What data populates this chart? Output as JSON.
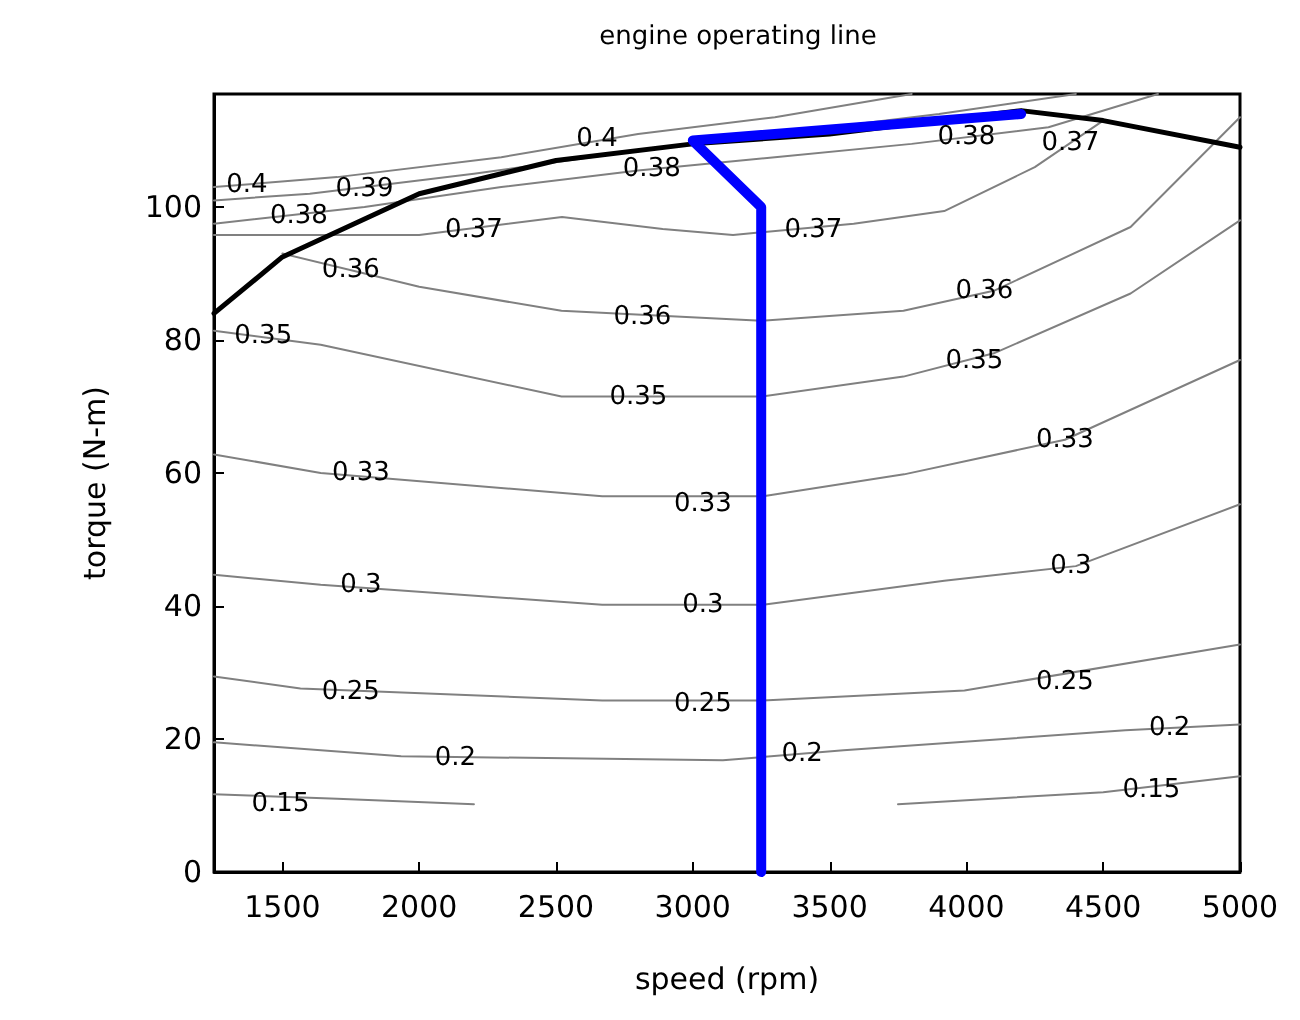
{
  "chart_data": {
    "type": "line",
    "title": "engine operating line",
    "xlabel": "speed (rpm)",
    "ylabel": "torque (N-m)",
    "xlim": [
      1250,
      5000
    ],
    "ylim": [
      0,
      117
    ],
    "xticks": [
      1500,
      2000,
      2500,
      3000,
      3500,
      4000,
      4500,
      5000
    ],
    "yticks": [
      0,
      20,
      40,
      60,
      80,
      100
    ],
    "grid": false,
    "marker": "none",
    "line_style": "solid",
    "series": [
      {
        "color": "#808080",
        "x": [
          1250,
          1700,
          2200,
          3000,
          3750,
          4500,
          5000
        ],
        "values": [
          11.7,
          11,
          10.2,
          null,
          10.2,
          12,
          14.4
        ]
      },
      {
        "color": "#808080",
        "x": [
          1250,
          1934,
          3110,
          3551,
          4581,
          5000
        ],
        "values": [
          19.5,
          17.4,
          16.8,
          18.3,
          21.3,
          22.2
        ]
      },
      {
        "color": "#808080",
        "x": [
          1250,
          1566,
          2669,
          3257,
          3993,
          5000
        ],
        "values": [
          29.4,
          27.6,
          25.8,
          25.8,
          27.3,
          34.2
        ]
      },
      {
        "color": "#808080",
        "x": [
          1250,
          1640,
          2669,
          3257,
          3919,
          4400,
          5000
        ],
        "values": [
          44.7,
          43.2,
          40.2,
          40.2,
          43.8,
          46,
          55.3
        ]
      },
      {
        "color": "#808080",
        "x": [
          1250,
          1640,
          2669,
          3257,
          3772,
          4360,
          5000
        ],
        "values": [
          62.8,
          60,
          56.5,
          56.5,
          59.8,
          65,
          77
        ]
      },
      {
        "color": "#808080",
        "x": [
          1250,
          1640,
          2520,
          3250,
          3770,
          4100,
          4600,
          5000
        ],
        "values": [
          81.4,
          79.3,
          71.5,
          71.5,
          74.5,
          78,
          87,
          98
        ]
      },
      {
        "color": "#808080",
        "x": [
          1500,
          2000,
          2520,
          3250,
          3770,
          4100,
          4600,
          5000
        ],
        "values": [
          93,
          88,
          84.4,
          82.9,
          84.4,
          87.4,
          97,
          113.5
        ]
      },
      {
        "color": "#808080",
        "x": [
          1250,
          2000,
          2522,
          2890,
          3147,
          3588,
          3919,
          4250,
          4500
        ],
        "values": [
          95.8,
          95.8,
          98.5,
          96.7,
          95.8,
          97.5,
          99.4,
          106,
          113
        ]
      },
      {
        "color": "#808080",
        "x": [
          1250,
          1800,
          2300,
          2800,
          3300,
          3800,
          4300,
          4700
        ],
        "values": [
          97.5,
          100,
          103,
          105.5,
          107.5,
          109.5,
          112,
          117
        ]
      },
      {
        "color": "#808080",
        "x": [
          1250,
          1600,
          2200,
          2800,
          3300,
          3900,
          4400
        ],
        "values": [
          101,
          102,
          105,
          108.5,
          111,
          114,
          117
        ]
      },
      {
        "color": "#808080",
        "x": [
          1250,
          1700,
          2300,
          2800,
          3300,
          3800
        ],
        "values": [
          103,
          104.5,
          107.5,
          111,
          113.5,
          117
        ]
      },
      {
        "color": "#000000",
        "x": [
          1250,
          1500,
          2000,
          2500,
          3000,
          3500,
          4200,
          4500,
          5000
        ],
        "values": [
          84,
          92.5,
          102,
          107,
          109.5,
          111,
          114.5,
          113,
          109
        ]
      },
      {
        "color": "#0000ff",
        "x": [
          3250,
          3250,
          3000,
          4200
        ],
        "values": [
          0,
          100,
          110,
          114
        ]
      }
    ],
    "annotations": [
      {
        "text": "0.15",
        "x": 1493,
        "y": 10.2
      },
      {
        "text": "0.15",
        "x": 4676,
        "y": 12.3
      },
      {
        "text": "0.2",
        "x": 2132,
        "y": 17.2
      },
      {
        "text": "0.2",
        "x": 3400,
        "y": 17.8
      },
      {
        "text": "0.2",
        "x": 4743,
        "y": 21.6
      },
      {
        "text": "0.25",
        "x": 1750,
        "y": 27
      },
      {
        "text": "0.25",
        "x": 3037,
        "y": 25.2
      },
      {
        "text": "0.25",
        "x": 4360,
        "y": 28.5
      },
      {
        "text": "0.3",
        "x": 1787,
        "y": 43.2
      },
      {
        "text": "0.3",
        "x": 3037,
        "y": 40.2
      },
      {
        "text": "0.3",
        "x": 4382,
        "y": 46
      },
      {
        "text": "0.33",
        "x": 1787,
        "y": 60
      },
      {
        "text": "0.33",
        "x": 3037,
        "y": 55.3
      },
      {
        "text": "0.33",
        "x": 4360,
        "y": 64.9
      },
      {
        "text": "0.35",
        "x": 1430,
        "y": 80.6
      },
      {
        "text": "0.35",
        "x": 2801,
        "y": 71.5
      },
      {
        "text": "0.35",
        "x": 4029,
        "y": 76.9
      },
      {
        "text": "0.36",
        "x": 1750,
        "y": 90.5
      },
      {
        "text": "0.36",
        "x": 2816,
        "y": 83.5
      },
      {
        "text": "0.36",
        "x": 4066,
        "y": 87.4
      },
      {
        "text": "0.37",
        "x": 2200,
        "y": 96.5
      },
      {
        "text": "0.37",
        "x": 3441,
        "y": 96.5
      },
      {
        "text": "0.38",
        "x": 1560,
        "y": 98.6
      },
      {
        "text": "0.39",
        "x": 1800,
        "y": 102.7
      },
      {
        "text": "0.4",
        "x": 1370,
        "y": 103.3
      },
      {
        "text": "0.4",
        "x": 2650,
        "y": 110.3
      },
      {
        "text": "0.38",
        "x": 2850,
        "y": 105.7
      },
      {
        "text": "0.38",
        "x": 4000,
        "y": 110.5
      },
      {
        "text": "0.37",
        "x": 4380,
        "y": 109.6
      }
    ]
  }
}
